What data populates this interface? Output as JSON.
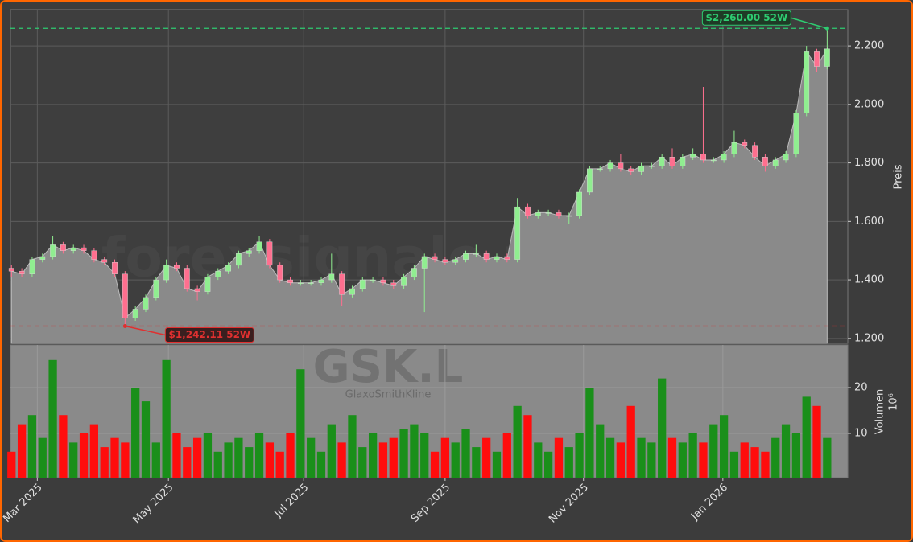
{
  "chart_data": [
    {
      "type": "candlestick",
      "watermark": "forexsignale.trade",
      "ylabel": "Preis",
      "x": [
        0,
        1,
        2,
        3,
        4,
        5,
        6,
        7,
        8,
        9,
        10,
        11,
        12,
        13,
        14,
        15,
        16,
        17,
        18,
        19,
        20,
        21,
        22,
        23,
        24,
        25,
        26,
        27,
        28,
        29,
        30,
        31,
        32,
        33,
        34,
        35,
        36,
        37,
        38,
        39,
        40,
        41,
        42,
        43,
        44,
        45,
        46,
        47,
        48,
        49,
        50,
        51,
        52,
        53,
        54,
        55,
        56,
        57,
        58,
        59,
        60,
        61,
        62,
        63,
        64,
        65,
        66,
        67,
        68,
        69,
        70,
        71,
        72,
        73,
        74,
        75,
        76,
        77,
        78,
        79
      ],
      "open": [
        1440,
        1430,
        1420,
        1470,
        1480,
        1520,
        1500,
        1510,
        1500,
        1470,
        1460,
        1420,
        1270,
        1300,
        1340,
        1400,
        1450,
        1440,
        1370,
        1360,
        1410,
        1430,
        1450,
        1490,
        1500,
        1530,
        1450,
        1400,
        1390,
        1390,
        1390,
        1400,
        1420,
        1350,
        1370,
        1400,
        1400,
        1390,
        1380,
        1410,
        1440,
        1480,
        1470,
        1460,
        1470,
        1490,
        1490,
        1470,
        1480,
        1470,
        1650,
        1620,
        1630,
        1630,
        1620,
        1620,
        1700,
        1780,
        1780,
        1800,
        1780,
        1770,
        1790,
        1790,
        1820,
        1790,
        1820,
        1830,
        1810,
        1810,
        1830,
        1870,
        1860,
        1820,
        1790,
        1810,
        1830,
        1970,
        2180,
        2130
      ],
      "high": [
        1450,
        1440,
        1480,
        1490,
        1550,
        1530,
        1520,
        1520,
        1510,
        1480,
        1470,
        1430,
        1310,
        1350,
        1410,
        1470,
        1460,
        1450,
        1380,
        1420,
        1440,
        1460,
        1500,
        1510,
        1550,
        1540,
        1460,
        1410,
        1400,
        1400,
        1410,
        1490,
        1430,
        1380,
        1410,
        1410,
        1410,
        1400,
        1420,
        1450,
        1490,
        1490,
        1480,
        1480,
        1500,
        1520,
        1500,
        1490,
        1490,
        1680,
        1660,
        1640,
        1640,
        1640,
        1630,
        1710,
        1790,
        1790,
        1810,
        1830,
        1790,
        1800,
        1800,
        1830,
        1850,
        1830,
        1850,
        2060,
        1820,
        1840,
        1910,
        1880,
        1870,
        1830,
        1820,
        1840,
        1980,
        2200,
        2190,
        2260
      ],
      "low": [
        1410,
        1410,
        1410,
        1460,
        1470,
        1490,
        1490,
        1490,
        1460,
        1450,
        1410,
        1242.11,
        1260,
        1290,
        1330,
        1390,
        1430,
        1360,
        1330,
        1350,
        1400,
        1420,
        1440,
        1480,
        1490,
        1440,
        1390,
        1380,
        1380,
        1380,
        1380,
        1390,
        1310,
        1340,
        1360,
        1390,
        1380,
        1370,
        1370,
        1400,
        1290,
        1460,
        1450,
        1450,
        1460,
        1480,
        1460,
        1460,
        1460,
        1460,
        1610,
        1610,
        1620,
        1610,
        1590,
        1610,
        1690,
        1770,
        1770,
        1770,
        1760,
        1760,
        1780,
        1780,
        1780,
        1780,
        1810,
        1800,
        1800,
        1800,
        1820,
        1850,
        1810,
        1770,
        1780,
        1800,
        1820,
        1960,
        2110,
        2120
      ],
      "close": [
        1430,
        1420,
        1470,
        1480,
        1520,
        1500,
        1510,
        1500,
        1470,
        1460,
        1420,
        1270,
        1300,
        1340,
        1400,
        1450,
        1440,
        1370,
        1360,
        1410,
        1430,
        1450,
        1490,
        1500,
        1530,
        1450,
        1400,
        1390,
        1390,
        1390,
        1400,
        1420,
        1350,
        1370,
        1400,
        1400,
        1390,
        1380,
        1410,
        1440,
        1480,
        1470,
        1460,
        1470,
        1490,
        1490,
        1470,
        1480,
        1470,
        1650,
        1620,
        1630,
        1630,
        1620,
        1620,
        1700,
        1780,
        1780,
        1800,
        1780,
        1770,
        1790,
        1790,
        1820,
        1790,
        1820,
        1830,
        1810,
        1810,
        1830,
        1870,
        1860,
        1820,
        1790,
        1810,
        1830,
        1970,
        2180,
        2130,
        2190
      ],
      "up_color": "#90ee90",
      "down_color": "#ff6f8f",
      "area_color": "#8a8a8a",
      "xlim": [
        -0.1,
        81
      ],
      "xticks": [
        {
          "value": 2.5,
          "label": "Mar 2025"
        },
        {
          "value": 15.2,
          "label": "May 2025"
        },
        {
          "value": 28.3,
          "label": "Jul 2025"
        },
        {
          "value": 42,
          "label": "Sep 2025"
        },
        {
          "value": 55.4,
          "label": "Nov 2025"
        },
        {
          "value": 68.9,
          "label": "Jan 2026"
        }
      ],
      "ylim": [
        1183,
        2324
      ],
      "yticks": [
        {
          "value": 1200,
          "label": "1.200"
        },
        {
          "value": 1400,
          "label": "1.400"
        },
        {
          "value": 1600,
          "label": "1.600"
        },
        {
          "value": 1800,
          "label": "1.800"
        },
        {
          "value": 2000,
          "label": "2.000"
        },
        {
          "value": 2200,
          "label": "2.200"
        }
      ],
      "grid": true,
      "annotations": [
        {
          "text": "$2,260.00 52W",
          "value": 2260,
          "x": 79,
          "color": "#2ecc71"
        },
        {
          "text": "$1,242.11 52W",
          "value": 1242.11,
          "x": 11,
          "color": "#e03030"
        }
      ]
    },
    {
      "type": "bar",
      "watermark": "GSK.L",
      "subtitle": "GlaxoSmithKline",
      "ylabel": "Volumen",
      "offset_label": "10⁶",
      "values": [
        6,
        12,
        14,
        9,
        26,
        14,
        8,
        10,
        12,
        7,
        9,
        8,
        20,
        17,
        8,
        26,
        10,
        7,
        9,
        10,
        6,
        8,
        9,
        7,
        10,
        8,
        6,
        10,
        24,
        9,
        6,
        12,
        8,
        14,
        7,
        10,
        8,
        9,
        11,
        12,
        10,
        6,
        9,
        8,
        11,
        7,
        9,
        6,
        10,
        16,
        14,
        8,
        6,
        9,
        7,
        10,
        20,
        12,
        9,
        8,
        16,
        9,
        8,
        22,
        9,
        8,
        10,
        8,
        12,
        14,
        6,
        8,
        7,
        6,
        9,
        12,
        10,
        18,
        16,
        9
      ],
      "up_color": "#1a8f1a",
      "down_color": "#ff0d0d",
      "ylim": [
        0.35,
        29.3
      ],
      "yticks": [
        10,
        20
      ],
      "grid": true
    }
  ]
}
